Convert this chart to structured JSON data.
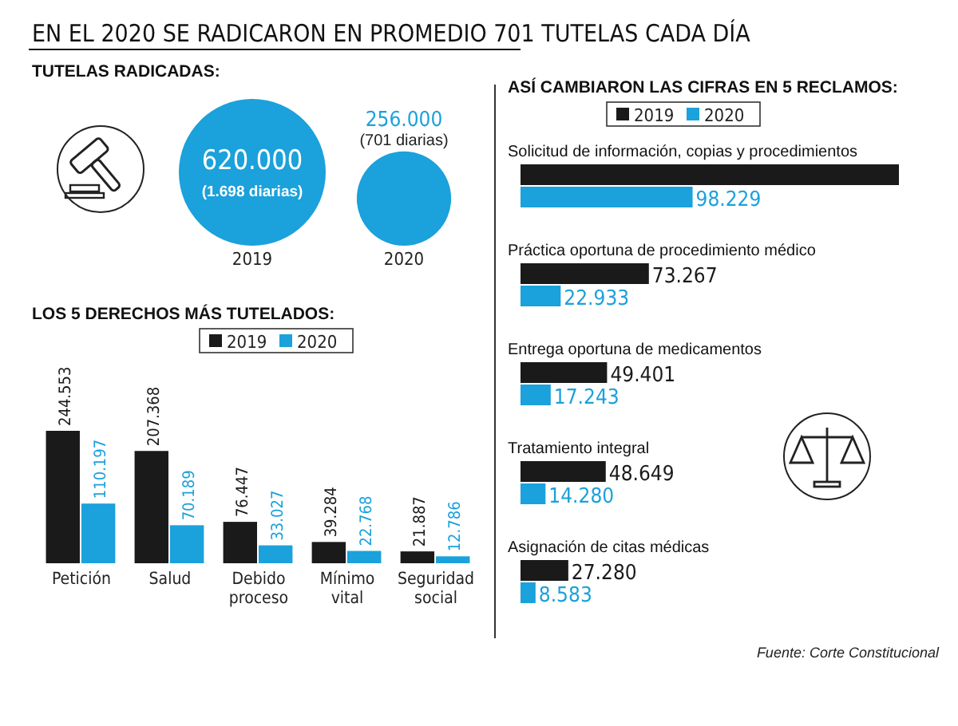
{
  "chart_data": [
    {
      "type": "other",
      "title": "EN EL 2020 SE RADICARON EN PROMEDIO 701 TUTELAS CADA DÍA",
      "subtitle": "TUTELAS RADICADAS:",
      "categories": [
        "2019",
        "2020"
      ],
      "values": [
        620000,
        256000
      ],
      "value_labels": [
        "620.000",
        "256.000"
      ],
      "color": "#1ba1db",
      "annotations": [
        "(1.698 diarias)",
        "(701 diarias)"
      ]
    },
    {
      "type": "bar",
      "title": "LOS 5 DERECHOS MÁS TUTELADOS:",
      "categories": [
        "Petición",
        "Salud",
        "Debido proceso",
        "Mínimo vital",
        "Seguridad social"
      ],
      "legend": "top",
      "series": [
        {
          "name": "2019",
          "color": "#1a1a1a",
          "values": [
            244553,
            207368,
            76447,
            39284,
            21887
          ],
          "value_labels": [
            "244.553",
            "207.368",
            "76.447",
            "39.284",
            "21.887"
          ]
        },
        {
          "name": "2020",
          "color": "#1ba1db",
          "values": [
            110197,
            70189,
            33027,
            22768,
            12786
          ],
          "value_labels": [
            "110.197",
            "70.189",
            "33.027",
            "22.768",
            "12.786"
          ]
        }
      ]
    },
    {
      "type": "bar",
      "orientation": "horizontal",
      "title": "ASÍ CAMBIARON LAS CIFRAS EN 5 RECLAMOS:",
      "categories": [
        "Solicitud de información, copias y procedimientos",
        "Práctica oportuna de procedimiento médico",
        "Entrega oportuna de medicamentos",
        "Tratamiento integral",
        "Asignación de citas médicas"
      ],
      "legend": "top",
      "annotations": [
        "Fuente: Corte Constitucional"
      ],
      "series": [
        {
          "name": "2019",
          "color": "#1a1a1a",
          "values": [
            216000,
            73267,
            49401,
            48649,
            27280
          ],
          "value_labels": [
            null,
            "73.267",
            "49.401",
            "48.649",
            "27.280"
          ]
        },
        {
          "name": "2020",
          "color": "#1ba1db",
          "values": [
            98229,
            22933,
            17243,
            14280,
            8583
          ],
          "value_labels": [
            "98.229",
            "22.933",
            "17.243",
            "14.280",
            "8.583"
          ]
        }
      ]
    }
  ]
}
